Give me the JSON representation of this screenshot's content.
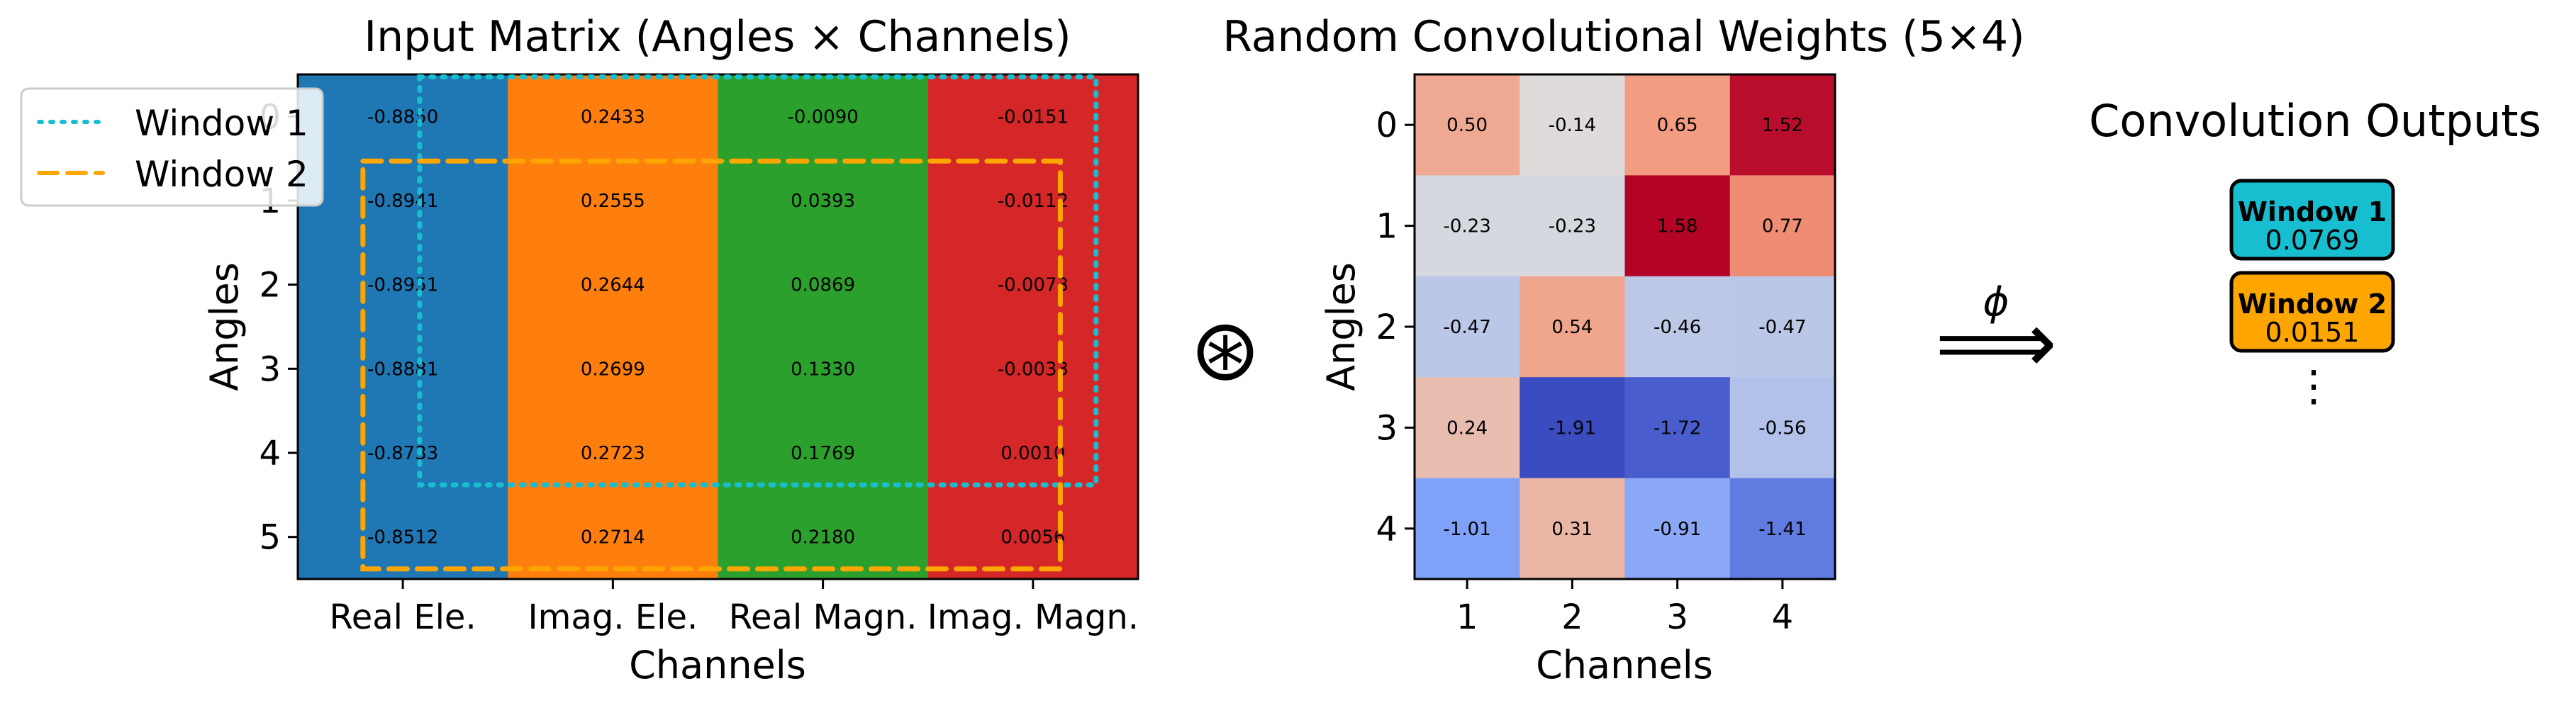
{
  "input_matrix": {
    "title": "Input Matrix (Angles × Channels)",
    "xlabel": "Channels",
    "ylabel": "Angles",
    "channels": [
      "Real Ele.",
      "Imag. Ele.",
      "Real Magn.",
      "Imag. Magn."
    ],
    "channel_colors": [
      "#1f77b4",
      "#ff7f0e",
      "#2ca02c",
      "#d62728"
    ],
    "angles": [
      "0",
      "1",
      "2",
      "3",
      "4",
      "5"
    ],
    "values": [
      [
        "-0.8850",
        "0.2433",
        "-0.0090",
        "-0.0151"
      ],
      [
        "-0.8941",
        "0.2555",
        "0.0393",
        "-0.0112"
      ],
      [
        "-0.8951",
        "0.2644",
        "0.0869",
        "-0.0073"
      ],
      [
        "-0.8881",
        "0.2699",
        "0.1330",
        "-0.0033"
      ],
      [
        "-0.8733",
        "0.2723",
        "0.1769",
        "0.0010"
      ],
      [
        "-0.8512",
        "0.2714",
        "0.2180",
        "0.0056"
      ]
    ],
    "legend": [
      {
        "label": "Window 1",
        "color": "#17becf",
        "style": "dotted"
      },
      {
        "label": "Window 2",
        "color": "#ffa500",
        "style": "dashed"
      }
    ],
    "legend_position": "top-left"
  },
  "conv_symbol": "⊛",
  "weights": {
    "title": "Random Convolutional Weights (5×4)",
    "xlabel": "Channels",
    "ylabel": "Angles",
    "x_ticks": [
      "1",
      "2",
      "3",
      "4"
    ],
    "y_ticks": [
      "0",
      "1",
      "2",
      "3",
      "4"
    ],
    "values": [
      [
        0.5,
        -0.14,
        0.65,
        1.52
      ],
      [
        -0.23,
        -0.23,
        1.58,
        0.77
      ],
      [
        -0.47,
        0.54,
        -0.46,
        -0.47
      ],
      [
        0.24,
        -1.91,
        -1.72,
        -0.56
      ],
      [
        -1.01,
        0.31,
        -0.91,
        -1.41
      ]
    ],
    "labels": [
      [
        "0.50",
        "-0.14",
        "0.65",
        "1.52"
      ],
      [
        "-0.23",
        "-0.23",
        "1.58",
        "0.77"
      ],
      [
        "-0.47",
        "0.54",
        "-0.46",
        "-0.47"
      ],
      [
        "0.24",
        "-1.91",
        "-1.72",
        "-0.56"
      ],
      [
        "-1.01",
        "0.31",
        "-0.91",
        "-1.41"
      ]
    ],
    "colormap": "coolwarm"
  },
  "arrow": {
    "symbol": "⟹",
    "label": "ϕ"
  },
  "outputs": {
    "title": "Convolution Outputs",
    "items": [
      {
        "label": "Window 1",
        "value": "0.0769",
        "color": "#17becf"
      },
      {
        "label": "Window 2",
        "value": "0.0151",
        "color": "#ffa500"
      }
    ],
    "ellipsis": "⋮"
  }
}
